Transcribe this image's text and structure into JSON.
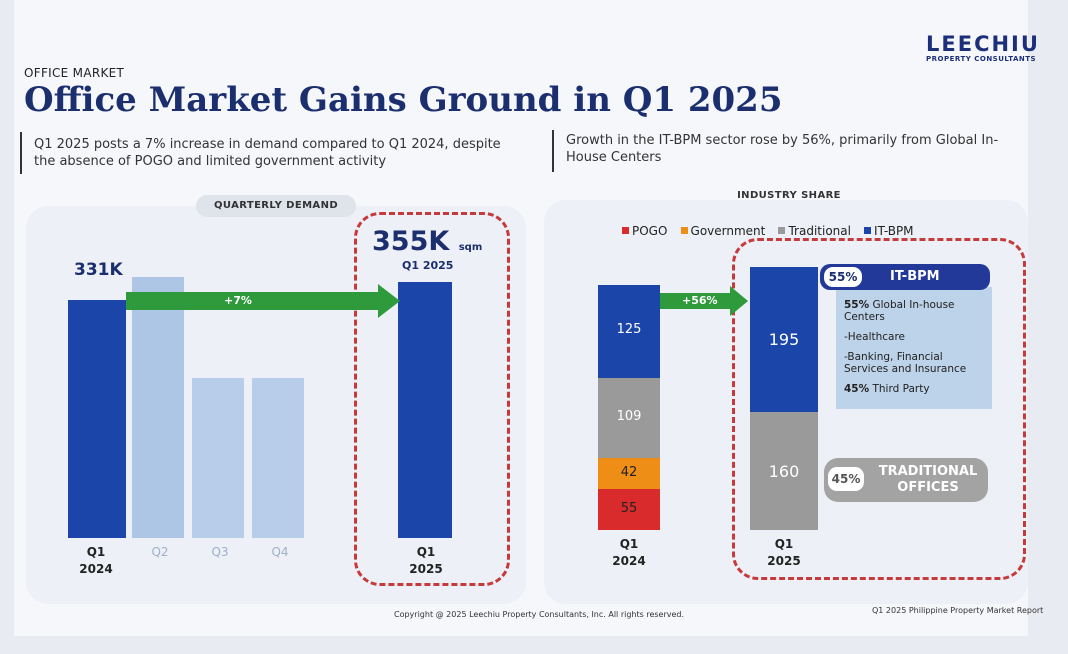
{
  "brand": {
    "name": "LEECHIU",
    "tagline": "PROPERTY CONSULTANTS"
  },
  "section_label": "OFFICE MARKET",
  "title": "Office Market Gains Ground in Q1 2025",
  "summary_left": [
    "Q1 2025 posts a 7% increase in demand compared to Q1 2024, despite",
    "the absence of POGO and limited government activity"
  ],
  "summary_right": [
    "Growth in the IT-BPM sector rose by 56%, primarily from Global In-",
    "House Centers"
  ],
  "colors": {
    "navy": "#1b45a8",
    "light_blue": "#aec6e6",
    "green": "#2f9a3c",
    "pogo": "#d92b2b",
    "government": "#ee8e16",
    "traditional": "#9a9a9a",
    "itbpm": "#1b45a8",
    "highlight": "#c73a3a"
  },
  "chart_data": [
    {
      "type": "bar",
      "title": "QUARTERLY DEMAND",
      "categories": [
        [
          "Q1",
          "2024"
        ],
        [
          "Q2"
        ],
        [
          "Q3"
        ],
        [
          "Q4"
        ],
        [
          "Q1",
          "2025"
        ]
      ],
      "values": [
        331,
        362,
        222,
        222,
        355
      ],
      "unit": "sqm",
      "data_labels": {
        "first": "331K",
        "last": "355K",
        "last_unit": "sqm",
        "last_sub": "Q1 2025"
      },
      "growth_arrow": "+7%",
      "highlight_category": 4
    },
    {
      "type": "bar",
      "stacked": true,
      "title": "INDUSTRY SHARE",
      "legend": [
        "POGO",
        "Government",
        "Traditional",
        "IT-BPM"
      ],
      "categories": [
        [
          "Q1",
          "2024"
        ],
        [
          "Q1",
          "2025"
        ]
      ],
      "series": [
        {
          "name": "POGO",
          "values": [
            55,
            0
          ]
        },
        {
          "name": "Government",
          "values": [
            42,
            0
          ]
        },
        {
          "name": "Traditional",
          "values": [
            109,
            160
          ]
        },
        {
          "name": "IT-BPM",
          "values": [
            125,
            195
          ]
        }
      ],
      "growth_arrow": "+56%"
    }
  ],
  "itbpm_card": {
    "pct": "55%",
    "label": "IT-BPM",
    "lines": [
      {
        "bold": "55%",
        "text": " Global In-house"
      },
      {
        "bold": "",
        "text": "Centers"
      },
      {
        "bold": "",
        "text": "-Healthcare"
      },
      {
        "bold": "",
        "text": "-Banking, Financial"
      },
      {
        "bold": "",
        "text": "Services and Insurance"
      },
      {
        "bold": "45%",
        "text": " Third Party"
      }
    ]
  },
  "traditional_card": {
    "pct": "45%",
    "label_line1": "TRADITIONAL",
    "label_line2": "OFFICES"
  },
  "footer": {
    "copyright": "Copyright @ 2025 Leechiu Property Consultants, Inc. All rights reserved.",
    "report": "Q1 2025 Philippine Property Market Report"
  }
}
